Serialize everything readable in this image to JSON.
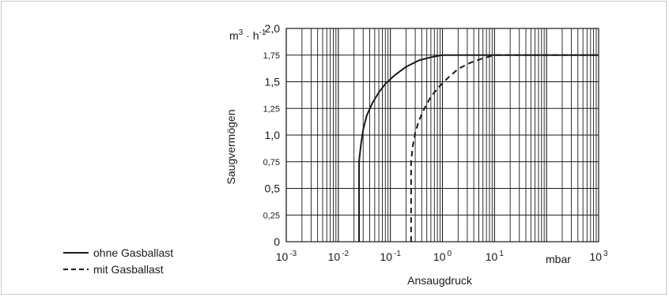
{
  "chart_data": {
    "type": "line",
    "title": "",
    "xlabel": "Ansaugdruck",
    "ylabel": "Saugvermögen",
    "y_unit": {
      "base": "m",
      "exp1": "3",
      "sep": " · ",
      "base2": "h",
      "exp2": "-1"
    },
    "x_unit": "mbar",
    "x_scale": "log",
    "xlim": [
      0.001,
      1000
    ],
    "ylim": [
      0,
      2.0
    ],
    "grid": true,
    "legend_position": "bottom-left",
    "x_tick_labels": [
      {
        "base": "10",
        "exp": "-3"
      },
      {
        "base": "10",
        "exp": "-2"
      },
      {
        "base": "10",
        "exp": "-1"
      },
      {
        "base": "10",
        "exp": "0"
      },
      {
        "base": "10",
        "exp": "1"
      },
      {
        "base": "10",
        "exp": "3"
      }
    ],
    "y_tick_labels": [
      {
        "value": 0,
        "label": "0",
        "small": false
      },
      {
        "value": 0.25,
        "label": "0,25",
        "small": true
      },
      {
        "value": 0.5,
        "label": "0,5",
        "small": false
      },
      {
        "value": 0.75,
        "label": "0,75",
        "small": true
      },
      {
        "value": 1.0,
        "label": "1,0",
        "small": false
      },
      {
        "value": 1.25,
        "label": "1,25",
        "small": true
      },
      {
        "value": 1.5,
        "label": "1,5",
        "small": false
      },
      {
        "value": 1.75,
        "label": "1,75",
        "small": true
      },
      {
        "value": 2.0,
        "label": "2,0",
        "small": false
      }
    ],
    "series": [
      {
        "name": "ohne Gasballast",
        "style": "solid",
        "color": "#1a1a1a",
        "points": [
          [
            0.025,
            0
          ],
          [
            0.025,
            0.4
          ],
          [
            0.025,
            0.75
          ],
          [
            0.027,
            0.9
          ],
          [
            0.03,
            1.05
          ],
          [
            0.035,
            1.18
          ],
          [
            0.045,
            1.3
          ],
          [
            0.06,
            1.4
          ],
          [
            0.08,
            1.48
          ],
          [
            0.12,
            1.56
          ],
          [
            0.2,
            1.64
          ],
          [
            0.35,
            1.7
          ],
          [
            0.6,
            1.73
          ],
          [
            1.0,
            1.75
          ],
          [
            3,
            1.75
          ],
          [
            10,
            1.75
          ],
          [
            100,
            1.75
          ],
          [
            1000,
            1.75
          ]
        ]
      },
      {
        "name": "mit Gasballast",
        "style": "dashed",
        "color": "#1a1a1a",
        "points": [
          [
            0.25,
            0
          ],
          [
            0.25,
            0.4
          ],
          [
            0.25,
            0.75
          ],
          [
            0.27,
            0.9
          ],
          [
            0.3,
            1.02
          ],
          [
            0.35,
            1.13
          ],
          [
            0.45,
            1.25
          ],
          [
            0.6,
            1.36
          ],
          [
            0.85,
            1.45
          ],
          [
            1.3,
            1.54
          ],
          [
            2,
            1.62
          ],
          [
            3.5,
            1.68
          ],
          [
            6,
            1.72
          ],
          [
            10,
            1.75
          ],
          [
            100,
            1.75
          ],
          [
            1000,
            1.75
          ]
        ]
      }
    ]
  }
}
